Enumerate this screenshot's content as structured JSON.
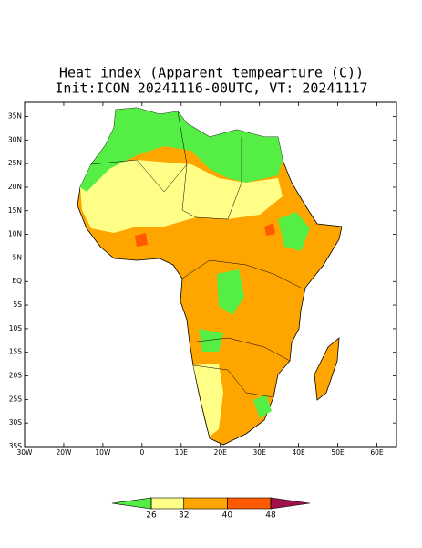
{
  "chart_data": {
    "type": "map",
    "title": "Heat index (Apparent tempearture (C))",
    "subtitle": "Init:ICON 20241116-00UTC, VT: 20241117",
    "xlim": [
      -30,
      65
    ],
    "ylim": [
      -35,
      38
    ],
    "xticks": [
      {
        "value": -30,
        "label": "30W"
      },
      {
        "value": -20,
        "label": "20W"
      },
      {
        "value": -10,
        "label": "10W"
      },
      0,
      {
        "value": 10,
        "label": "10E"
      },
      {
        "value": 20,
        "label": "20E"
      },
      {
        "value": 30,
        "label": "30E"
      },
      {
        "value": 40,
        "label": "40E"
      },
      {
        "value": 50,
        "label": "50E"
      },
      {
        "value": 60,
        "label": "60E"
      }
    ],
    "yticks": [
      {
        "value": 35,
        "label": "35N"
      },
      {
        "value": 30,
        "label": "30N"
      },
      {
        "value": 25,
        "label": "25N"
      },
      {
        "value": 20,
        "label": "20N"
      },
      {
        "value": 15,
        "label": "15N"
      },
      {
        "value": 10,
        "label": "10N"
      },
      {
        "value": 5,
        "label": "5N"
      },
      {
        "value": 0,
        "label": "EQ"
      },
      {
        "value": -5,
        "label": "5S"
      },
      {
        "value": -10,
        "label": "10S"
      },
      {
        "value": -15,
        "label": "15S"
      },
      {
        "value": -20,
        "label": "20S"
      },
      {
        "value": -25,
        "label": "25S"
      },
      {
        "value": -30,
        "label": "30S"
      },
      {
        "value": -35,
        "label": "35S"
      }
    ],
    "colorbar": {
      "levels": [
        26,
        32,
        40,
        48
      ],
      "colors": [
        "#55ee44",
        "#ffff88",
        "#ffa500",
        "#ff5a00",
        "#a0104a"
      ]
    }
  }
}
